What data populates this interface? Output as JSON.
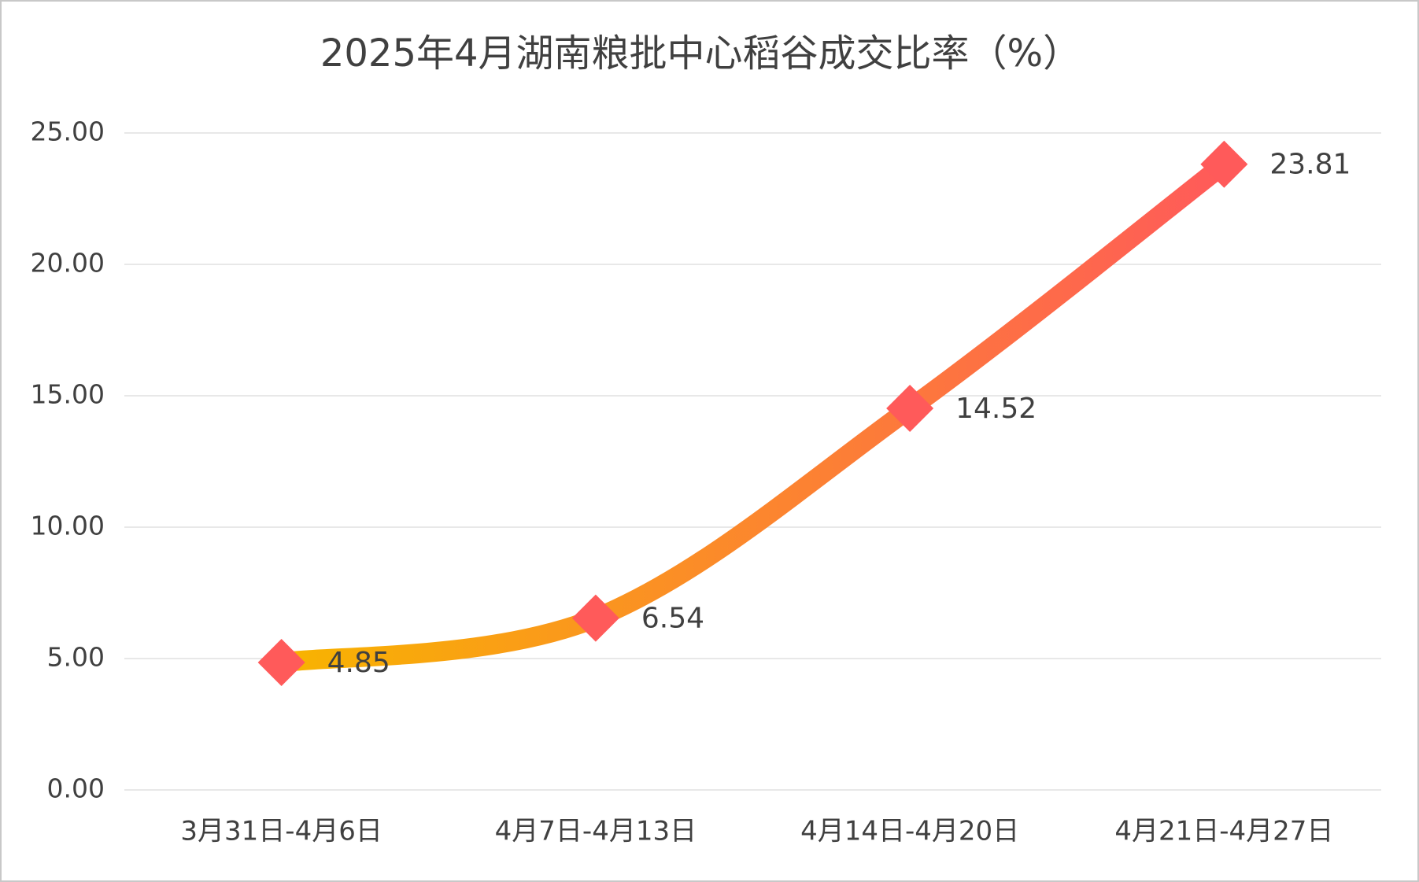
{
  "chart_data": {
    "type": "line",
    "title": "2025年4月湖南粮批中心稻谷成交比率（%）",
    "categories": [
      "3月31日-4月6日",
      "4月7日-4月13日",
      "4月14日-4月20日",
      "4月21日-4月27日"
    ],
    "values": [
      4.85,
      6.54,
      14.52,
      23.81
    ],
    "line_gradient": [
      "#f8b400",
      "#ff5a5a"
    ],
    "marker_color": "#ff5a5a",
    "smooth": true,
    "ylim": [
      0,
      25
    ],
    "yticks": [
      {
        "value": 0,
        "label": "0.00"
      },
      {
        "value": 5,
        "label": "5.00"
      },
      {
        "value": 10,
        "label": "10.00"
      },
      {
        "value": 15,
        "label": "15.00"
      },
      {
        "value": 20,
        "label": "20.00"
      },
      {
        "value": 25,
        "label": "25.00"
      }
    ],
    "grid": true
  }
}
